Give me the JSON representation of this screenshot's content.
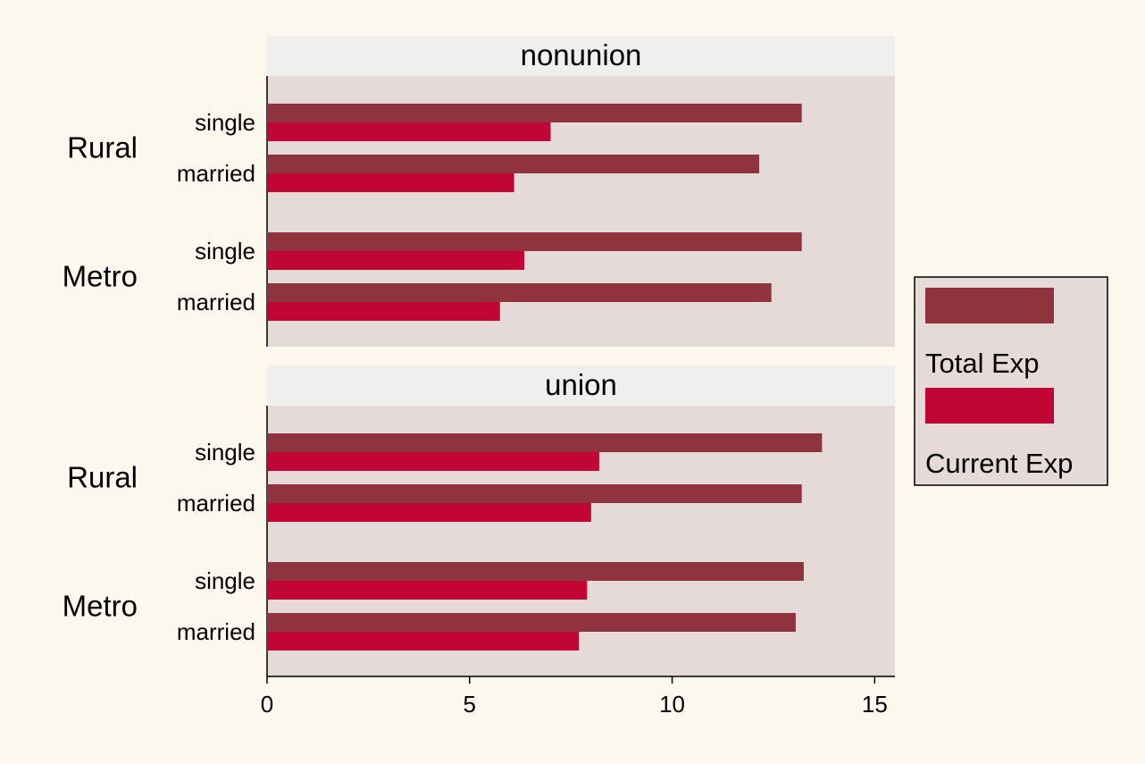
{
  "chart_data": {
    "type": "bar",
    "orientation": "horizontal",
    "xlim": [
      0,
      15.5
    ],
    "x_ticks": [
      0,
      5,
      10,
      15
    ],
    "grid": false,
    "legend_position": "right",
    "series": [
      {
        "name": "Total Exp",
        "color": "#8f343d"
      },
      {
        "name": "Current Exp",
        "color": "#c10534"
      }
    ],
    "panels": [
      {
        "title": "nonunion",
        "groups": [
          {
            "label": "Rural",
            "rows": [
              {
                "label": "single",
                "values": [
                  13.2,
                  7.0
                ]
              },
              {
                "label": "married",
                "values": [
                  12.15,
                  6.1
                ]
              }
            ]
          },
          {
            "label": "Metro",
            "rows": [
              {
                "label": "single",
                "values": [
                  13.2,
                  6.35
                ]
              },
              {
                "label": "married",
                "values": [
                  12.45,
                  5.75
                ]
              }
            ]
          }
        ]
      },
      {
        "title": "union",
        "groups": [
          {
            "label": "Rural",
            "rows": [
              {
                "label": "single",
                "values": [
                  13.7,
                  8.2
                ]
              },
              {
                "label": "married",
                "values": [
                  13.2,
                  8.0
                ]
              }
            ]
          },
          {
            "label": "Metro",
            "rows": [
              {
                "label": "single",
                "values": [
                  13.25,
                  7.9
                ]
              },
              {
                "label": "married",
                "values": [
                  13.05,
                  7.7
                ]
              }
            ]
          }
        ]
      }
    ]
  },
  "colors": {
    "page_background": "#fdf8ee",
    "plot_background": "#e6dad8",
    "strip_background": "#efefef",
    "axis": "#000000",
    "text": "#000000"
  }
}
